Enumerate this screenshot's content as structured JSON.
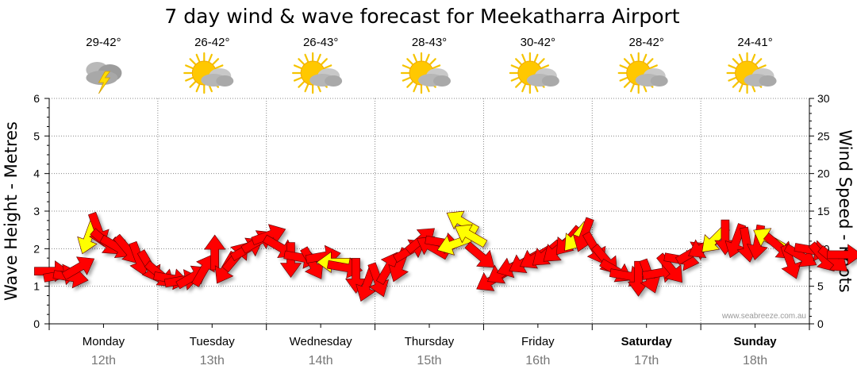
{
  "chart_data": {
    "type": "line",
    "title": "7 day wind & wave forecast for Meekatharra Airport",
    "ylabel_left": "Wave Height - Metres",
    "ylabel_right": "Wind Speed - Knots",
    "ylim_left": [
      0,
      6
    ],
    "ylim_right": [
      0,
      30
    ],
    "yticks_left": [
      "0",
      "1",
      "2",
      "3",
      "4",
      "5",
      "6"
    ],
    "yticks_right": [
      "0",
      "5",
      "10",
      "15",
      "20",
      "25",
      "30"
    ],
    "grid": true,
    "credit": "www.seabreeze.com.au",
    "days": [
      {
        "name": "Monday",
        "date": "12th",
        "temp": "29-42°",
        "icon": "storm-cloud-icon",
        "bold": false
      },
      {
        "name": "Tuesday",
        "date": "13th",
        "temp": "26-42°",
        "icon": "sun-cloud-icon",
        "bold": false
      },
      {
        "name": "Wednesday",
        "date": "14th",
        "temp": "26-43°",
        "icon": "sun-cloud-icon",
        "bold": false
      },
      {
        "name": "Thursday",
        "date": "15th",
        "temp": "28-43°",
        "icon": "sun-cloud-icon",
        "bold": false
      },
      {
        "name": "Friday",
        "date": "16th",
        "temp": "30-42°",
        "icon": "sun-cloud-icon",
        "bold": false
      },
      {
        "name": "Saturday",
        "date": "17th",
        "temp": "28-42°",
        "icon": "sun-cloud-icon",
        "bold": true
      },
      {
        "name": "Sunday",
        "date": "18th",
        "temp": "24-41°",
        "icon": "sun-cloud-icon",
        "bold": true
      }
    ],
    "series": [
      {
        "name": "Wind",
        "unit": "knots",
        "colors": {
          "strong": "#ff0000",
          "light": "#ffff00"
        },
        "points": [
          {
            "t": 0.05,
            "speed": 7.0,
            "dir": 90,
            "light": false
          },
          {
            "t": 0.22,
            "speed": 6.5,
            "dir": 80,
            "light": false
          },
          {
            "t": 0.4,
            "speed": 6.2,
            "dir": 100,
            "light": false
          },
          {
            "t": 0.55,
            "speed": 7.5,
            "dir": 60,
            "light": false
          },
          {
            "t": 0.72,
            "speed": 11.5,
            "dir": 200,
            "light": true
          },
          {
            "t": 0.9,
            "speed": 12.5,
            "dir": 160,
            "light": false
          },
          {
            "t": 1.05,
            "speed": 10.8,
            "dir": 130,
            "light": false
          },
          {
            "t": 1.25,
            "speed": 10.2,
            "dir": 120,
            "light": false
          },
          {
            "t": 1.45,
            "speed": 9.8,
            "dir": 140,
            "light": false
          },
          {
            "t": 1.65,
            "speed": 8.6,
            "dir": 160,
            "light": false
          },
          {
            "t": 1.85,
            "speed": 7.6,
            "dir": 150,
            "light": false
          },
          {
            "t": 2.05,
            "speed": 6.5,
            "dir": 130,
            "light": false
          },
          {
            "t": 2.25,
            "speed": 6.0,
            "dir": 100,
            "light": false
          },
          {
            "t": 2.45,
            "speed": 5.8,
            "dir": 80,
            "light": false
          },
          {
            "t": 2.65,
            "speed": 6.3,
            "dir": 60,
            "light": false
          },
          {
            "t": 2.85,
            "speed": 7.2,
            "dir": 30,
            "light": false
          },
          {
            "t": 3.05,
            "speed": 9.5,
            "dir": 0,
            "light": false
          },
          {
            "t": 3.25,
            "speed": 7.4,
            "dir": 210,
            "light": false
          },
          {
            "t": 3.45,
            "speed": 9.0,
            "dir": 40,
            "light": false
          },
          {
            "t": 3.65,
            "speed": 10.0,
            "dir": 60,
            "light": false
          },
          {
            "t": 3.85,
            "speed": 11.0,
            "dir": 60,
            "light": false
          },
          {
            "t": 4.05,
            "speed": 11.8,
            "dir": 70,
            "light": false
          },
          {
            "t": 4.25,
            "speed": 10.2,
            "dir": 120,
            "light": false
          },
          {
            "t": 4.45,
            "speed": 8.5,
            "dir": 180,
            "light": false
          },
          {
            "t": 4.65,
            "speed": 8.8,
            "dir": 100,
            "light": false
          },
          {
            "t": 4.85,
            "speed": 8.0,
            "dir": 150,
            "light": false
          },
          {
            "t": 5.05,
            "speed": 9.0,
            "dir": 80,
            "light": false
          },
          {
            "t": 5.25,
            "speed": 8.2,
            "dir": 270,
            "light": true
          },
          {
            "t": 5.45,
            "speed": 7.5,
            "dir": 100,
            "light": false
          },
          {
            "t": 5.65,
            "speed": 6.4,
            "dir": 180,
            "light": false
          },
          {
            "t": 5.85,
            "speed": 5.2,
            "dir": 200,
            "light": false
          },
          {
            "t": 6.05,
            "speed": 5.8,
            "dir": 160,
            "light": false
          },
          {
            "t": 6.25,
            "speed": 7.5,
            "dir": 30,
            "light": false
          },
          {
            "t": 6.45,
            "speed": 7.8,
            "dir": 200,
            "light": false
          },
          {
            "t": 6.65,
            "speed": 9.8,
            "dir": 60,
            "light": false
          },
          {
            "t": 6.85,
            "speed": 11.2,
            "dir": 50,
            "light": false
          },
          {
            "t": 7.05,
            "speed": 10.2,
            "dir": 300,
            "light": false
          },
          {
            "t": 7.25,
            "speed": 10.8,
            "dir": 100,
            "light": false
          },
          {
            "t": 7.45,
            "speed": 10.6,
            "dir": 250,
            "light": true
          },
          {
            "t": 7.6,
            "speed": 13.6,
            "dir": 300,
            "light": true
          },
          {
            "t": 7.75,
            "speed": 11.8,
            "dir": 300,
            "light": true
          },
          {
            "t": 7.95,
            "speed": 9.0,
            "dir": 130,
            "light": false
          },
          {
            "t": 8.15,
            "speed": 5.8,
            "dir": 240,
            "light": false
          },
          {
            "t": 8.35,
            "speed": 6.8,
            "dir": 240,
            "light": false
          },
          {
            "t": 8.55,
            "speed": 7.6,
            "dir": 250,
            "light": false
          },
          {
            "t": 8.75,
            "speed": 8.2,
            "dir": 240,
            "light": false
          },
          {
            "t": 8.95,
            "speed": 8.8,
            "dir": 240,
            "light": false
          },
          {
            "t": 9.15,
            "speed": 9.3,
            "dir": 230,
            "light": false
          },
          {
            "t": 9.35,
            "speed": 9.8,
            "dir": 230,
            "light": false
          },
          {
            "t": 9.55,
            "speed": 11.0,
            "dir": 220,
            "light": false
          },
          {
            "t": 9.7,
            "speed": 11.5,
            "dir": 220,
            "light": true
          },
          {
            "t": 9.85,
            "speed": 11.8,
            "dir": 200,
            "light": false
          },
          {
            "t": 10.05,
            "speed": 10.0,
            "dir": 150,
            "light": false
          },
          {
            "t": 10.25,
            "speed": 8.5,
            "dir": 140,
            "light": false
          },
          {
            "t": 10.45,
            "speed": 7.0,
            "dir": 120,
            "light": false
          },
          {
            "t": 10.65,
            "speed": 6.4,
            "dir": 100,
            "light": false
          },
          {
            "t": 10.85,
            "speed": 6.0,
            "dir": 180,
            "light": false
          },
          {
            "t": 11.05,
            "speed": 6.3,
            "dir": 160,
            "light": false
          },
          {
            "t": 11.25,
            "speed": 6.8,
            "dir": 80,
            "light": false
          },
          {
            "t": 11.45,
            "speed": 7.3,
            "dir": 140,
            "light": false
          },
          {
            "t": 11.65,
            "speed": 8.5,
            "dir": 100,
            "light": false
          },
          {
            "t": 11.85,
            "speed": 9.5,
            "dir": 60,
            "light": false
          },
          {
            "t": 12.05,
            "speed": 10.2,
            "dir": 240,
            "light": false
          },
          {
            "t": 12.25,
            "speed": 11.2,
            "dir": 225,
            "light": true
          },
          {
            "t": 12.45,
            "speed": 11.5,
            "dir": 180,
            "light": false
          },
          {
            "t": 12.65,
            "speed": 11.0,
            "dir": 200,
            "light": false
          },
          {
            "t": 12.85,
            "speed": 10.5,
            "dir": 170,
            "light": false
          },
          {
            "t": 13.05,
            "speed": 10.8,
            "dir": 190,
            "light": false
          },
          {
            "t": 13.25,
            "speed": 11.3,
            "dir": 300,
            "light": true
          },
          {
            "t": 13.45,
            "speed": 10.2,
            "dir": 130,
            "light": false
          },
          {
            "t": 13.65,
            "speed": 8.2,
            "dir": 160,
            "light": false
          },
          {
            "t": 13.85,
            "speed": 9.0,
            "dir": 120,
            "light": false
          },
          {
            "t": 14.05,
            "speed": 9.8,
            "dir": 100,
            "light": false
          },
          {
            "t": 14.25,
            "speed": 8.8,
            "dir": 140,
            "light": false
          },
          {
            "t": 14.45,
            "speed": 8.5,
            "dir": 130,
            "light": false
          },
          {
            "t": 14.65,
            "speed": 9.2,
            "dir": 90,
            "light": false
          }
        ]
      }
    ]
  }
}
